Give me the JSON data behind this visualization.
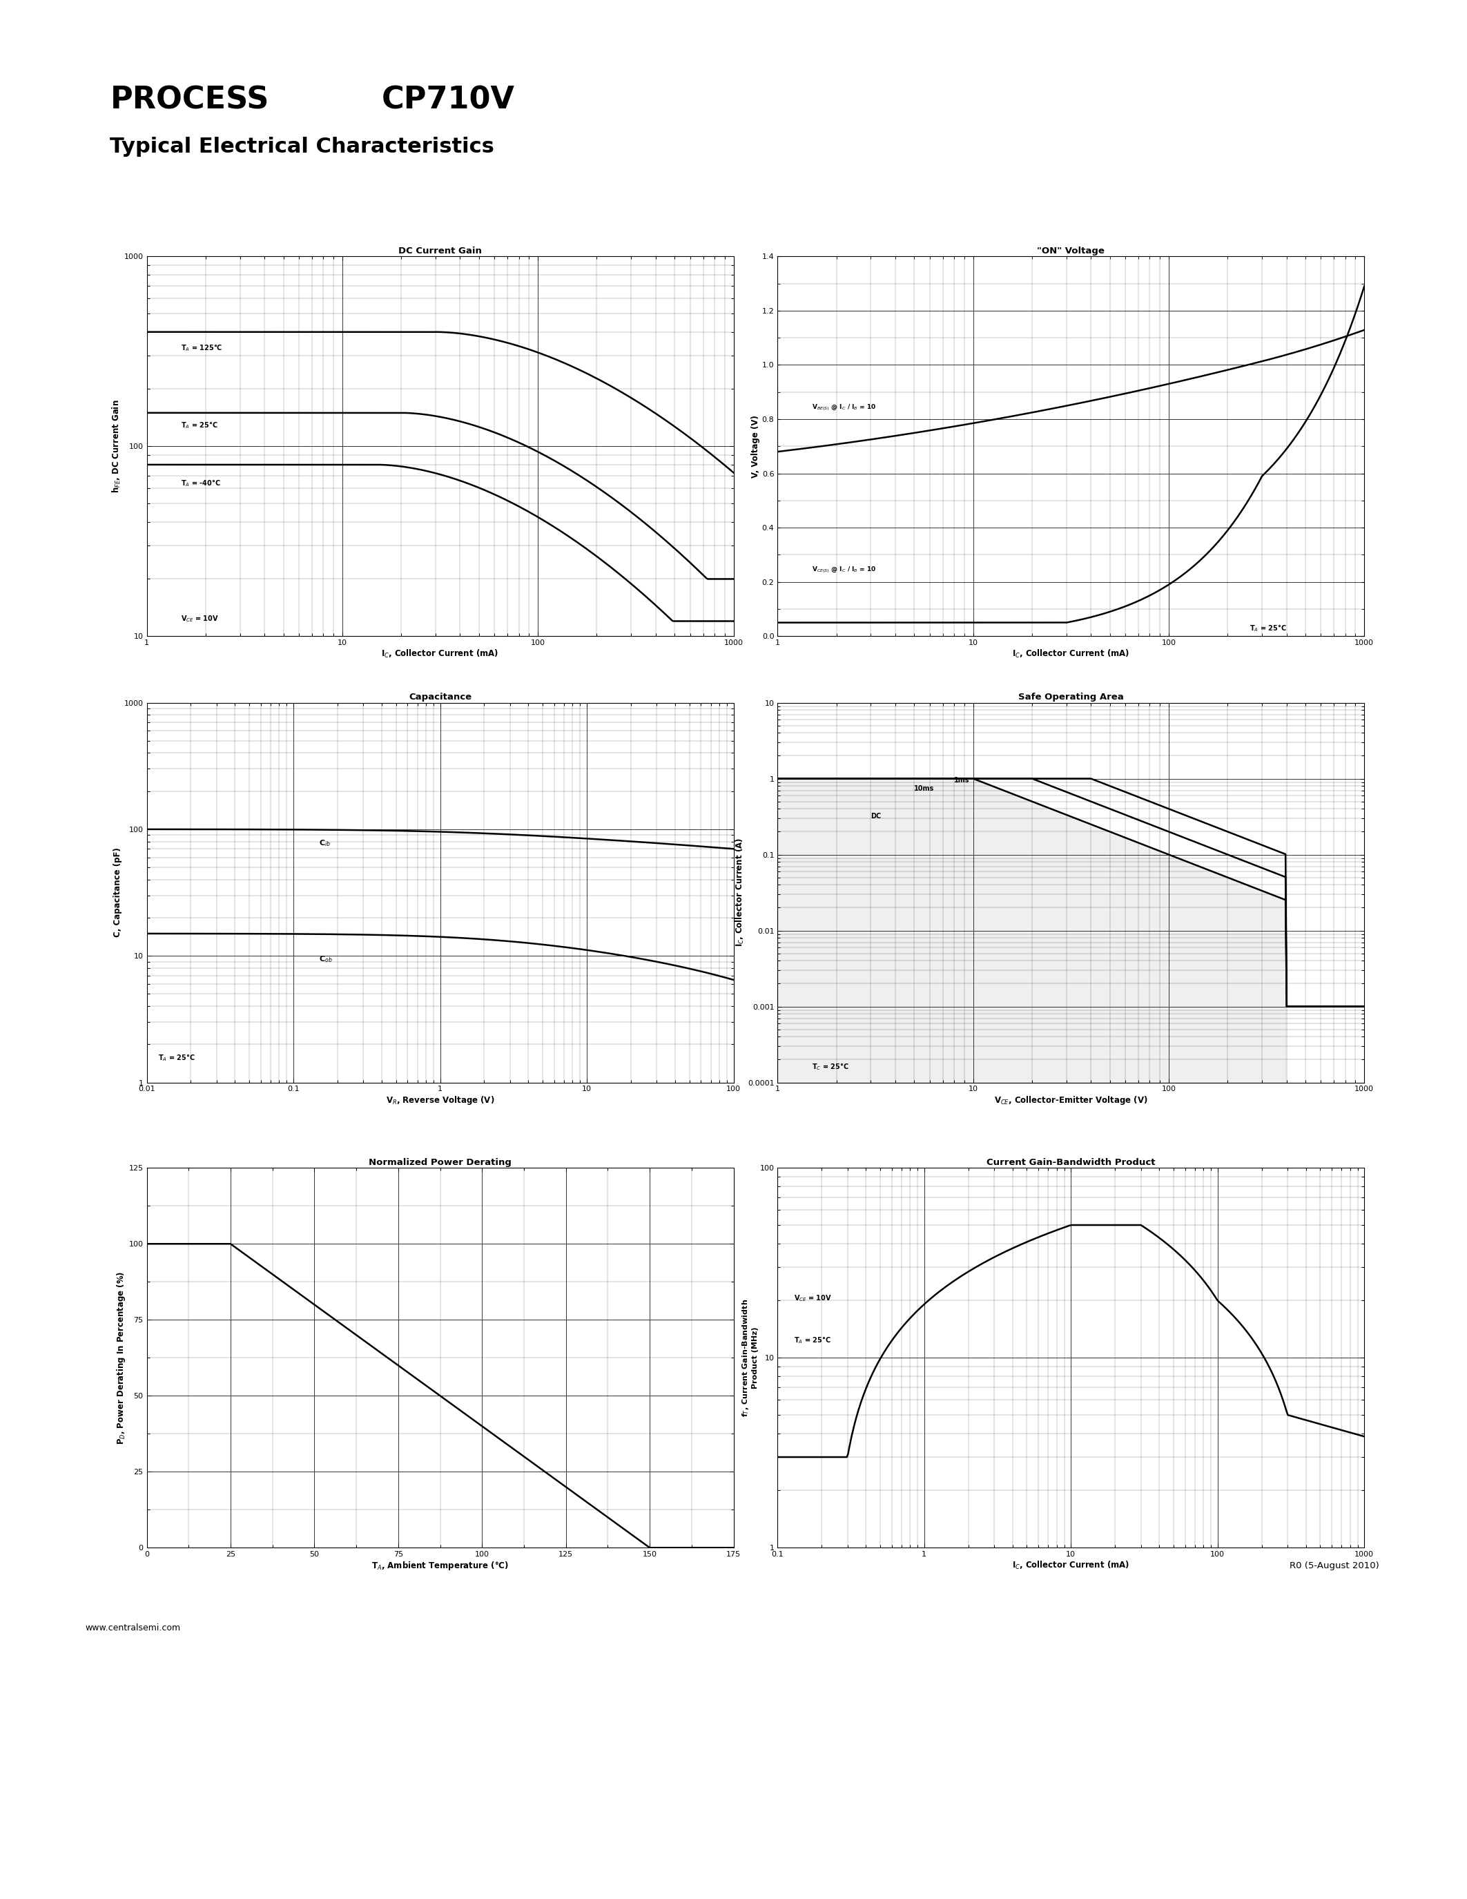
{
  "page_title1a": "PROCESS",
  "page_title1b": "CP710V",
  "page_title2": "Typical Electrical Characteristics",
  "footer_left": "www.centralsemi.com",
  "footer_right": "R0 (5-August 2010)",
  "bg_color": "#ffffff",
  "plot1_title": "DC Current Gain",
  "plot1_xlabel": "I$_C$, Collector Current (mA)",
  "plot1_ylabel": "h$_{FE}$, DC Current Gain",
  "plot1_xlim": [
    1,
    1000
  ],
  "plot1_ylim": [
    10,
    1000
  ],
  "plot1_xticks": [
    1,
    10,
    100,
    1000
  ],
  "plot1_yticks": [
    10,
    100,
    1000
  ],
  "plot1_ann1": "T$_A$ = 125°C",
  "plot1_ann2": "T$_A$ = 25°C",
  "plot1_ann3": "T$_A$ = -40°C",
  "plot1_ann4": "V$_{CE}$ = 10V",
  "plot2_title": "\"ON\" Voltage",
  "plot2_xlabel": "I$_C$, Collector Current (mA)",
  "plot2_ylabel": "V, Voltage (V)",
  "plot2_xlim": [
    1,
    1000
  ],
  "plot2_ylim": [
    0.0,
    1.4
  ],
  "plot2_yticks": [
    0.0,
    0.2,
    0.4,
    0.6,
    0.8,
    1.0,
    1.2,
    1.4
  ],
  "plot2_xticks": [
    1,
    10,
    100,
    1000
  ],
  "plot2_ann1": "V$_{BE(S)}$ @ I$_C$ / I$_B$ = 10",
  "plot2_ann2": "V$_{CE(S)}$ @ I$_C$ / I$_B$ = 10",
  "plot2_ann3": "T$_A$ = 25°C",
  "plot3_title": "Capacitance",
  "plot3_xlabel": "V$_R$, Reverse Voltage (V)",
  "plot3_ylabel": "C, Capacitance (pF)",
  "plot3_xlim": [
    0.01,
    100
  ],
  "plot3_ylim": [
    1,
    1000
  ],
  "plot3_xticks": [
    0.01,
    0.1,
    1,
    10,
    100
  ],
  "plot3_yticks": [
    1,
    10,
    100,
    1000
  ],
  "plot3_ann1": "C$_{ib}$",
  "plot3_ann2": "C$_{ob}$",
  "plot3_ann3": "T$_A$ = 25°C",
  "plot4_title": "Safe Operating Area",
  "plot4_xlabel": "V$_{CE}$, Collector-Emitter Voltage (V)",
  "plot4_ylabel": "I$_C$, Collector Current (A)",
  "plot4_xlim": [
    1,
    1000
  ],
  "plot4_ylim": [
    0.0001,
    10
  ],
  "plot4_xticks": [
    1,
    10,
    100,
    1000
  ],
  "plot4_yticks": [
    0.0001,
    0.001,
    0.01,
    0.1,
    1,
    10
  ],
  "plot4_ann1": "10ms",
  "plot4_ann2": "1ms",
  "plot4_ann3": "DC",
  "plot4_ann4": "T$_C$ = 25°C",
  "plot5_title": "Normalized Power Derating",
  "plot5_xlabel": "T$_A$, Ambient Temperature (°C)",
  "plot5_ylabel": "P$_D$, Power Derating In Percentage (%)",
  "plot5_xlim": [
    0,
    175
  ],
  "plot5_ylim": [
    0,
    125
  ],
  "plot5_xticks": [
    0,
    25,
    50,
    75,
    100,
    125,
    150,
    175
  ],
  "plot5_yticks": [
    0,
    25,
    50,
    75,
    100,
    125
  ],
  "plot6_title": "Current Gain-Bandwidth Product",
  "plot6_xlabel": "I$_C$, Collector Current (mA)",
  "plot6_ylabel": "f$_T$, Current Gain-Bandwidth\nProduct (MHz)",
  "plot6_xlim": [
    0.1,
    1000
  ],
  "plot6_ylim": [
    1,
    100
  ],
  "plot6_xticks": [
    0.1,
    1,
    10,
    100,
    1000
  ],
  "plot6_yticks": [
    1,
    10,
    100
  ],
  "plot6_ann1": "V$_{CE}$ = 10V",
  "plot6_ann2": "T$_A$ = 25°C"
}
